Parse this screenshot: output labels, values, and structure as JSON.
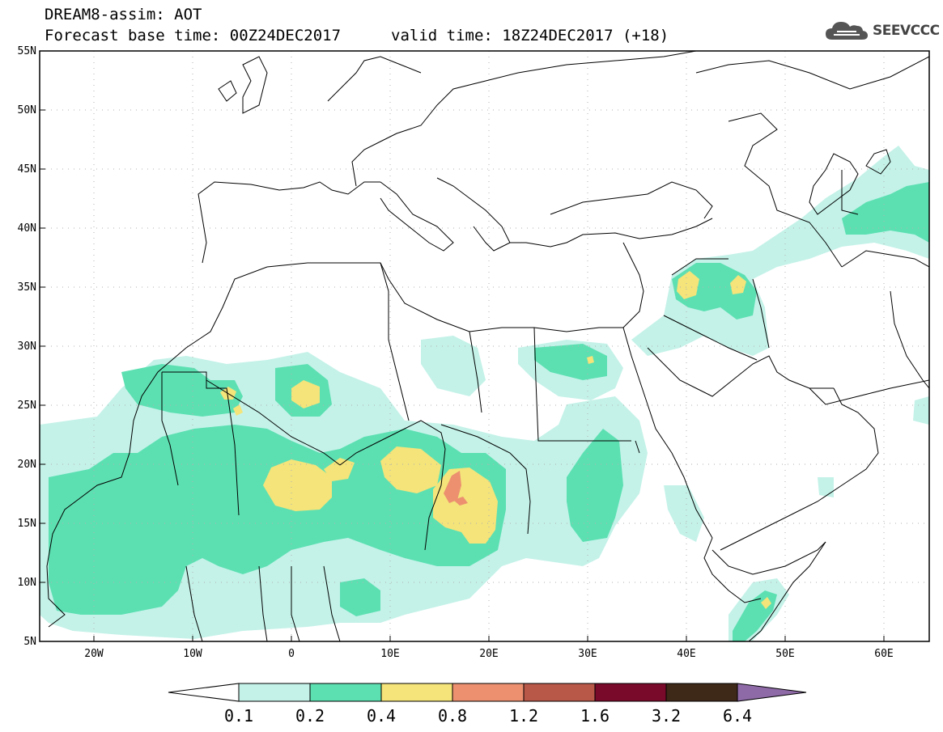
{
  "header": {
    "line1": "DREAM8-assim: AOT",
    "line2": "Forecast base time: 00Z24DEC2017",
    "valid": "valid time: 18Z24DEC2017 (+18)",
    "logo_text": "SEEVCCC",
    "logo_icon": "cloud-icon"
  },
  "map": {
    "lon_range": [
      -25,
      65
    ],
    "lat_range": [
      5,
      55
    ],
    "grid": "dotted",
    "lon_ticks": [
      "20W",
      "10W",
      "0",
      "10E",
      "20E",
      "30E",
      "40E",
      "50E",
      "60E"
    ],
    "lat_ticks": [
      "5N",
      "10N",
      "15N",
      "20N",
      "25N",
      "30N",
      "35N",
      "40N",
      "45N",
      "50N",
      "55N"
    ]
  },
  "colorbar": {
    "levels": [
      "0.1",
      "0.2",
      "0.4",
      "0.8",
      "1.2",
      "1.6",
      "3.2",
      "6.4"
    ],
    "colors": [
      "#c4f2e8",
      "#5ce0b2",
      "#f4e47a",
      "#ec9070",
      "#b85848",
      "#7a0a2a",
      "#3e2818",
      "#8e6aa6"
    ],
    "low_color": "#ffffff",
    "high_color": "#8e6aa6"
  }
}
